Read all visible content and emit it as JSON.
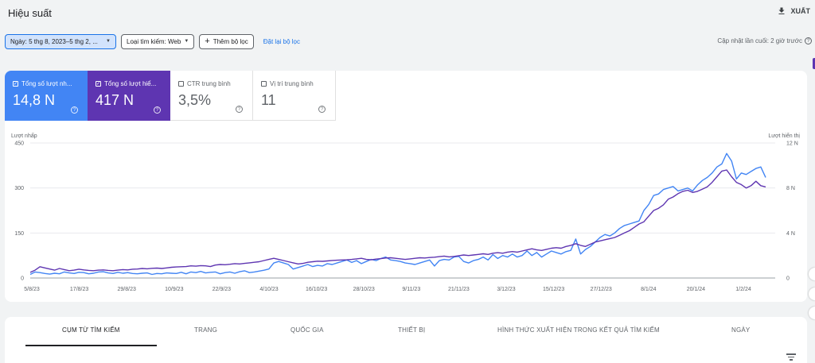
{
  "header": {
    "title": "Hiệu suất",
    "export_label": "XUẤT",
    "export_icon": "download-icon"
  },
  "filters": {
    "date_chip": "Ngày: 5 thg 8, 2023–5 thg 2, ...",
    "search_type_chip": "Loại tìm kiếm: Web",
    "add_filter": "Thêm bộ lọc",
    "reset": "Đặt lại bộ lọc",
    "last_update": "Cập nhật lần cuối: 2 giờ trước"
  },
  "metrics": [
    {
      "label": "Tổng số lượt nh...",
      "value": "14,8 N",
      "checked": true,
      "color": "#4285f4"
    },
    {
      "label": "Tổng số lượt hiể...",
      "value": "417 N",
      "checked": true,
      "color": "#5e35b1"
    },
    {
      "label": "CTR trung bình",
      "value": "3,5%",
      "checked": false
    },
    {
      "label": "Vị trí trung bình",
      "value": "11",
      "checked": false
    }
  ],
  "chart_data": {
    "type": "line",
    "ylabel": "Lượt nhấp",
    "ylabel_right": "Lượt hiển thị",
    "ylim": [
      0,
      450
    ],
    "ylim_right": [
      0,
      12000
    ],
    "y_ticks": [
      "450",
      "300",
      "150",
      "0"
    ],
    "y_ticks_right": [
      "12 N",
      "8 N",
      "4 N",
      "0"
    ],
    "x_ticks": [
      "5/8/23",
      "17/8/23",
      "29/8/23",
      "10/9/23",
      "22/9/23",
      "4/10/23",
      "16/10/23",
      "28/10/23",
      "9/11/23",
      "21/11/23",
      "3/12/23",
      "15/12/23",
      "27/12/23",
      "8/1/24",
      "20/1/24",
      "1/2/24"
    ],
    "grid": true,
    "series": [
      {
        "name": "Tổng số lượt nhấp",
        "axis": "left",
        "color": "#4285f4",
        "values": [
          12,
          20,
          18,
          15,
          13,
          16,
          14,
          20,
          17,
          15,
          19,
          18,
          14,
          16,
          20,
          21,
          17,
          15,
          19,
          16,
          18,
          15,
          14,
          16,
          17,
          12,
          15,
          14,
          17,
          16,
          15,
          19,
          14,
          20,
          18,
          22,
          17,
          19,
          20,
          14,
          18,
          20,
          16,
          21,
          24,
          18,
          20,
          23,
          26,
          30,
          50,
          55,
          50,
          45,
          30,
          35,
          40,
          45,
          38,
          42,
          40,
          48,
          45,
          50,
          55,
          60,
          52,
          58,
          48,
          55,
          62,
          58,
          65,
          70,
          60,
          58,
          55,
          50,
          48,
          45,
          50,
          55,
          60,
          40,
          58,
          62,
          60,
          70,
          72,
          55,
          50,
          58,
          62,
          70,
          60,
          78,
          65,
          75,
          70,
          80,
          70,
          75,
          90,
          75,
          85,
          70,
          80,
          90,
          85,
          80,
          88,
          92,
          130,
          80,
          95,
          105,
          120,
          135,
          145,
          140,
          150,
          165,
          175,
          180,
          185,
          190,
          225,
          245,
          275,
          280,
          295,
          300,
          305,
          290,
          295,
          300,
          290,
          310,
          325,
          335,
          350,
          370,
          380,
          415,
          390,
          330,
          350,
          345,
          355,
          365,
          370,
          335
        ]
      },
      {
        "name": "Tổng số lượt hiển thị",
        "axis": "right",
        "color": "#5e35b1",
        "values": [
          500,
          700,
          1000,
          900,
          800,
          700,
          850,
          750,
          650,
          700,
          780,
          720,
          680,
          650,
          700,
          720,
          680,
          650,
          700,
          750,
          720,
          780,
          800,
          850,
          820,
          860,
          880,
          850,
          900,
          950,
          980,
          1000,
          1020,
          1080,
          1050,
          1100,
          1080,
          1020,
          1150,
          1200,
          1180,
          1220,
          1280,
          1250,
          1300,
          1350,
          1400,
          1450,
          1550,
          1650,
          1750,
          1650,
          1550,
          1450,
          1350,
          1250,
          1300,
          1400,
          1450,
          1500,
          1480,
          1520,
          1560,
          1580,
          1600,
          1620,
          1650,
          1700,
          1750,
          1650,
          1620,
          1680,
          1720,
          1780,
          1800,
          1750,
          1700,
          1650,
          1700,
          1750,
          1800,
          1780,
          1820,
          1850,
          1900,
          1950,
          1880,
          1920,
          1980,
          2050,
          2000,
          2050,
          2100,
          2150,
          2100,
          2200,
          2250,
          2200,
          2300,
          2350,
          2300,
          2400,
          2500,
          2600,
          2500,
          2450,
          2550,
          2650,
          2700,
          2650,
          2800,
          2900,
          3050,
          2900,
          2800,
          3000,
          3200,
          3300,
          3400,
          3500,
          3600,
          3800,
          4000,
          4200,
          4500,
          4800,
          5000,
          5500,
          6000,
          6200,
          6500,
          7000,
          7200,
          7500,
          7700,
          7800,
          7600,
          7700,
          7900,
          8100,
          8500,
          9000,
          9500,
          9600,
          9000,
          8500,
          8300,
          8000,
          8200,
          8600,
          8200,
          8100
        ]
      }
    ]
  },
  "tabs": [
    "CỤM TỪ TÌM KIẾM",
    "TRANG",
    "QUỐC GIA",
    "THIẾT BỊ",
    "HÌNH THỨC XUẤT HIỆN TRONG KẾT QUẢ TÌM KIẾM",
    "NGÀY"
  ],
  "icons": {
    "help": "help-icon",
    "checkbox": "checkbox-icon",
    "filter": "filter-list-icon"
  }
}
